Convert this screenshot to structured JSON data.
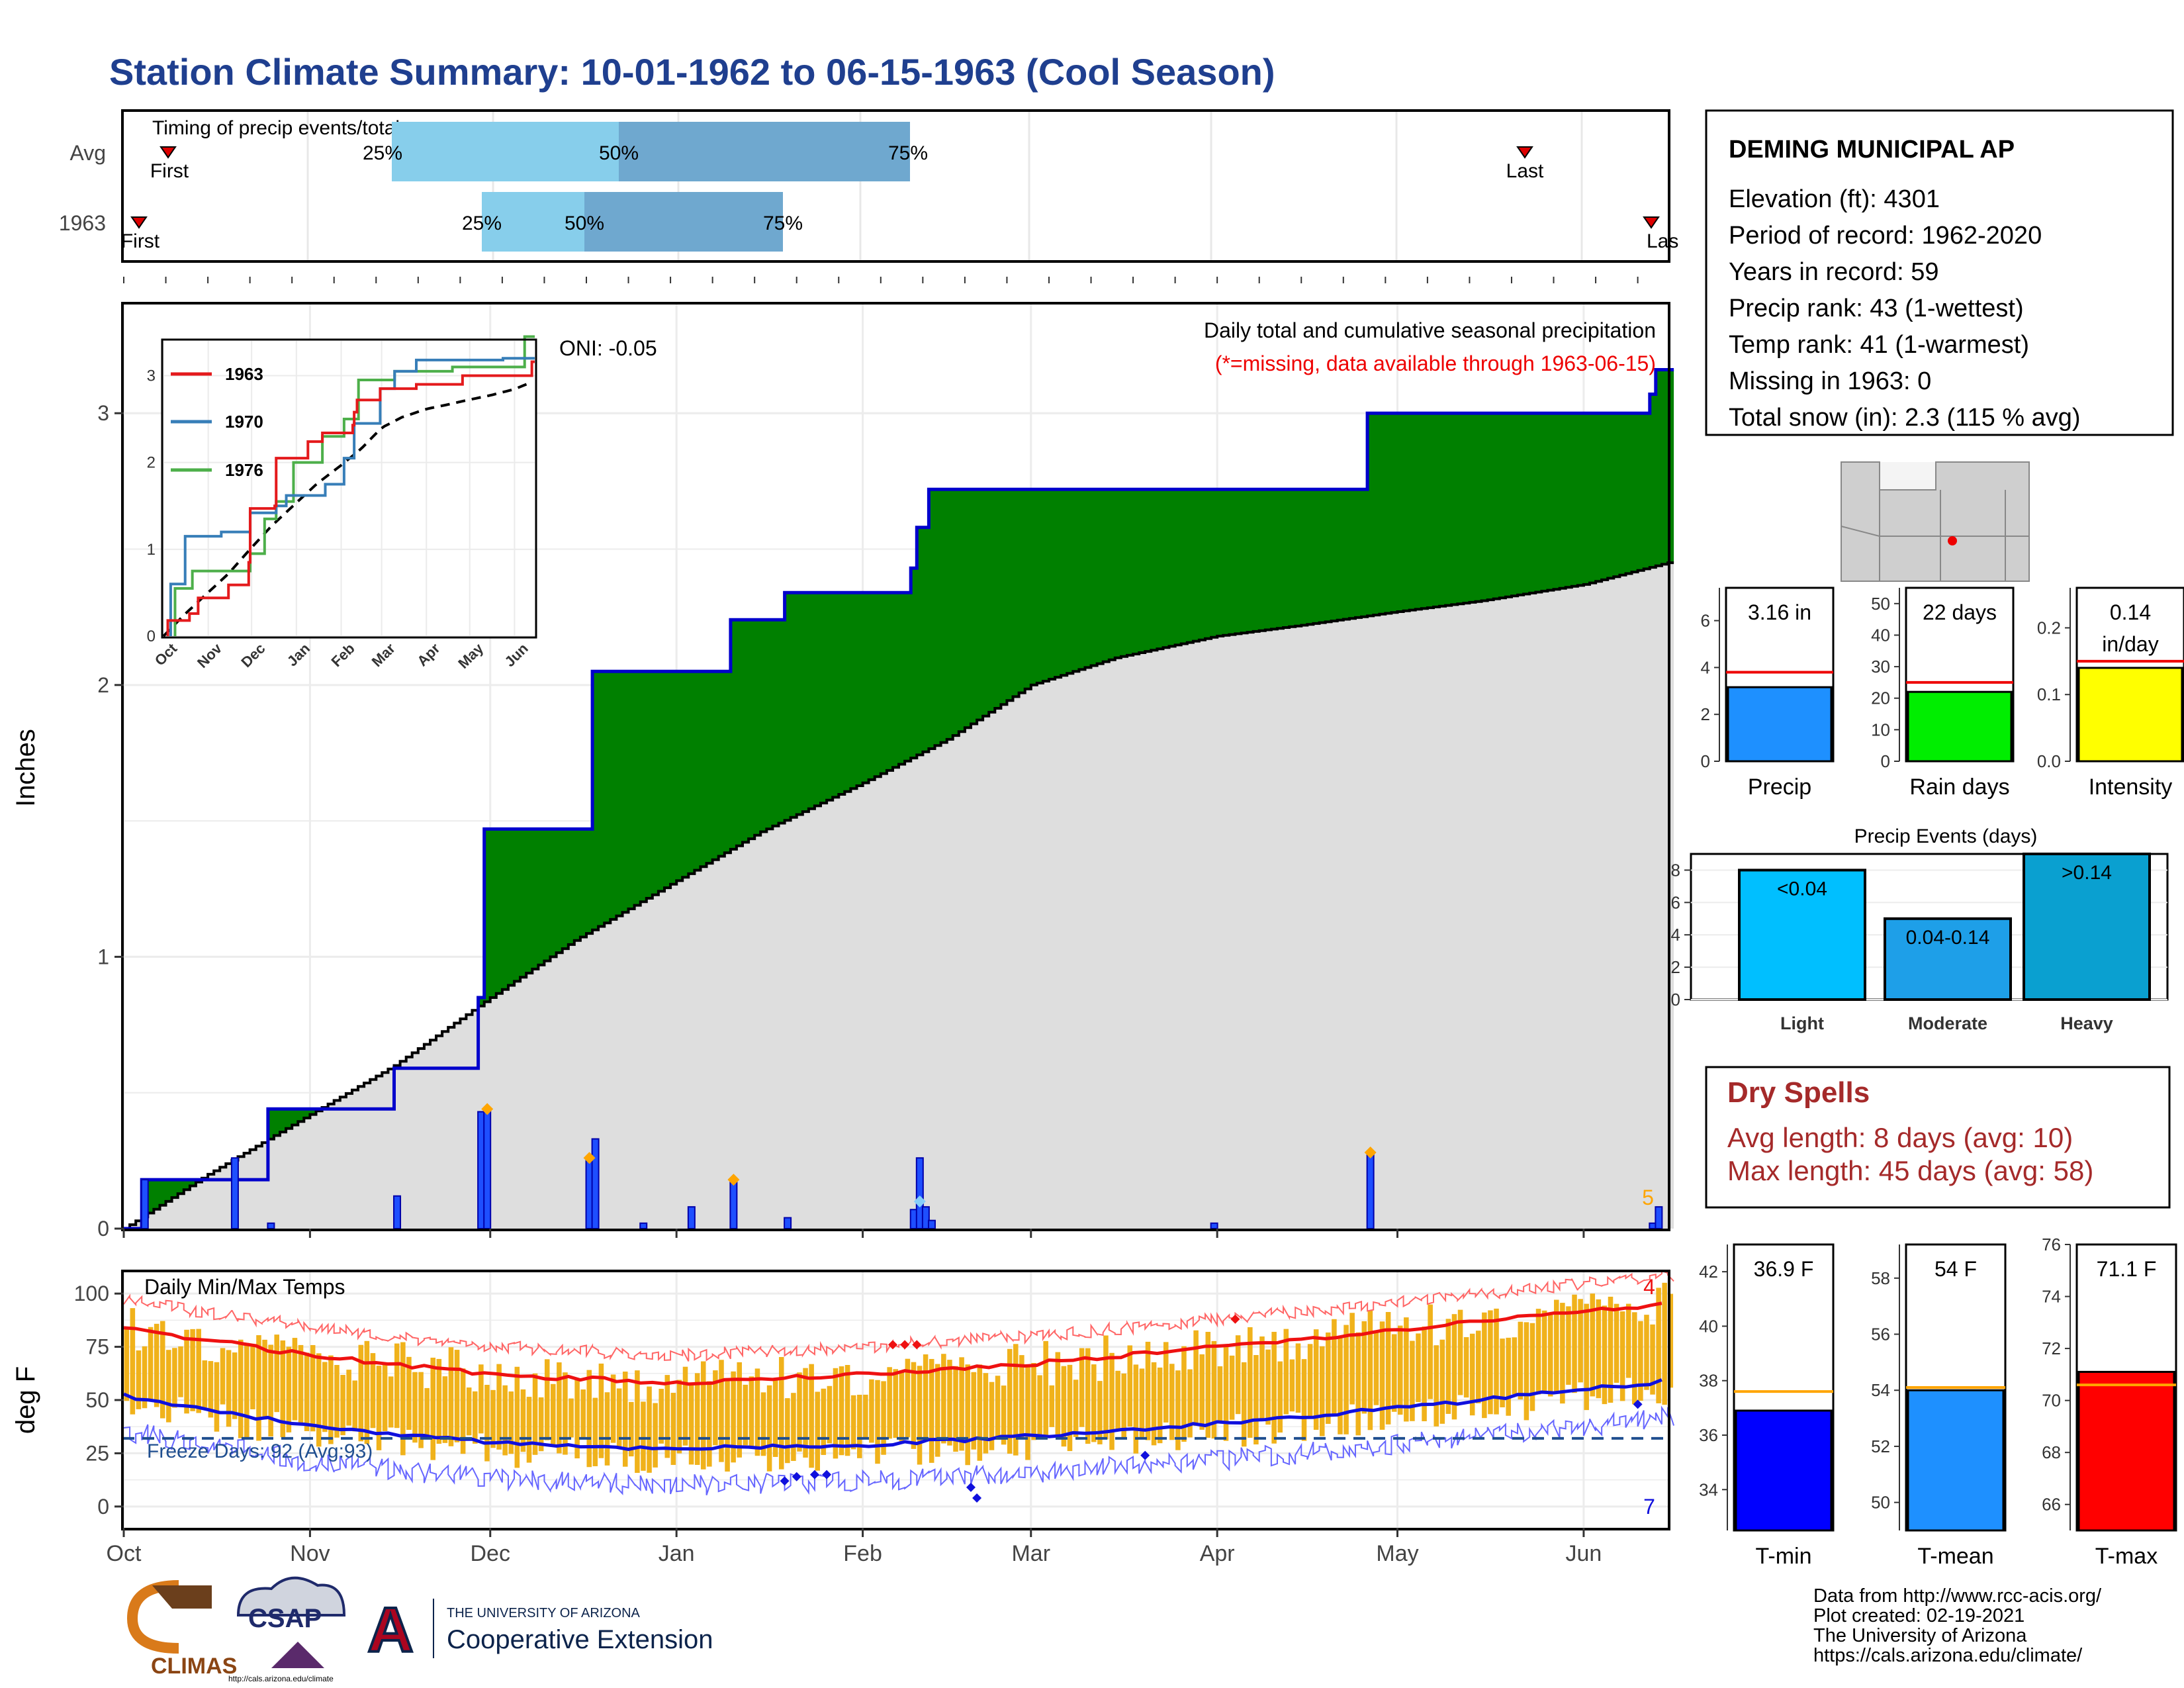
{
  "title": "Station Climate Summary: 10-01-1962 to 06-15-1963 (Cool Season)",
  "colors": {
    "title": "#1f3f8f",
    "precip_fill": "#008000",
    "precip_line": "#0000cc",
    "deficit_fill": "#7b5200",
    "normal_fill": "#dedede",
    "daily_bar": "#1e4fff",
    "marker": "#ffa500",
    "temp_bar": "#f0b21b",
    "tmax_line": "#ee1111",
    "tmin_line": "#1010dd",
    "dry_spell": "#a52a2a"
  },
  "timing": {
    "label": "Timing of precip events/totals",
    "rows": [
      {
        "name": "Avg",
        "first_label": "First",
        "last_label": "Last",
        "p25": "25%",
        "p50": "50%",
        "p75": "75%"
      },
      {
        "name": "1963",
        "first_label": "First",
        "last_label": "Las",
        "p25": "25%",
        "p50": "50%",
        "p75": "75%"
      }
    ]
  },
  "station": {
    "name": "DEMING MUNICIPAL AP",
    "lines": [
      "Elevation (ft): 4301",
      "Period of record: 1962-2020",
      "Years in record: 59",
      "Precip rank: 43 (1-wettest)",
      "Temp rank: 41 (1-warmest)",
      "Missing in 1963: 0",
      "Total snow (in): 2.3 (115 % avg)"
    ]
  },
  "main_chart": {
    "ylabel": "Inches",
    "title": "Daily total and cumulative seasonal precipitation",
    "subtitle": "(*=missing, data available through 1963-06-15)",
    "oni": "ONI: -0.05",
    "corner_count": "5",
    "y_ticks": [
      "0",
      "1",
      "2",
      "3"
    ]
  },
  "inset": {
    "legend": [
      "1963",
      "1970",
      "1976"
    ],
    "y_ticks": [
      "0",
      "1",
      "2",
      "3"
    ],
    "x_ticks": [
      "Oct",
      "Nov",
      "Dec",
      "Jan",
      "Feb",
      "Mar",
      "Apr",
      "May",
      "Jun"
    ]
  },
  "months": [
    "Oct",
    "Nov",
    "Dec",
    "Jan",
    "Feb",
    "Mar",
    "Apr",
    "May",
    "Jun"
  ],
  "temp_chart": {
    "ylabel": "deg F",
    "title": "Daily Min/Max Temps",
    "freeze": "Freeze Days: 92 (Avg:93)",
    "corner_hot": "4",
    "corner_cold": "7",
    "y_ticks": [
      "0",
      "25",
      "50",
      "75",
      "100"
    ]
  },
  "bars_precip": [
    {
      "label": "Precip",
      "value_text": "3.16 in",
      "ticks": [
        "0",
        "2",
        "4",
        "6"
      ]
    },
    {
      "label": "Rain days",
      "value_text": "22 days",
      "ticks": [
        "0",
        "10",
        "20",
        "30",
        "40",
        "50"
      ]
    },
    {
      "label": "Intensity",
      "value_text": "0.14 in/day",
      "value_line1": "0.14",
      "value_line2": "in/day",
      "ticks": [
        "0.0",
        "0.1",
        "0.2"
      ]
    }
  ],
  "events": {
    "title": "Precip Events (days)",
    "ticks": [
      "0",
      "2",
      "4",
      "6",
      "8"
    ],
    "bars": [
      {
        "label": "Light",
        "range": "<0.04"
      },
      {
        "label": "Moderate",
        "range": "0.04-0.14"
      },
      {
        "label": "Heavy",
        "range": ">0.14"
      }
    ]
  },
  "dry_spells": {
    "title": "Dry Spells",
    "avg": "Avg length: 8 days (avg: 10)",
    "max": "Max length: 45 days (avg: 58)"
  },
  "bars_temp": [
    {
      "label": "T-min",
      "value_text": "36.9 F",
      "ticks": [
        "34",
        "36",
        "38",
        "40",
        "42"
      ]
    },
    {
      "label": "T-mean",
      "value_text": "54 F",
      "ticks": [
        "50",
        "52",
        "54",
        "56",
        "58"
      ]
    },
    {
      "label": "T-max",
      "value_text": "71.1 F",
      "ticks": [
        "66",
        "68",
        "70",
        "72",
        "74",
        "76"
      ]
    }
  ],
  "footer": [
    "Data from http://www.rcc-acis.org/",
    "Plot created: 02-19-2021",
    "The University of Arizona",
    "https://cals.arizona.edu/climate/"
  ],
  "logos": {
    "climas": "CLIMAS",
    "csap": "CSAP",
    "csap_url": "http://cals.arizona.edu/climate",
    "ua_small": "THE UNIVERSITY OF ARIZONA",
    "ua_big": "Cooperative Extension",
    "ua_letter": "A"
  },
  "chart_data": [
    {
      "type": "line",
      "title": "Daily total and cumulative seasonal precipitation",
      "ylabel": "Inches",
      "ylim": [
        0,
        3.4
      ],
      "xlim": [
        "1962-10-01",
        "1963-06-15"
      ],
      "series": [
        {
          "name": "cumulative_observed",
          "x": [
            "1962-10-01",
            "1962-10-04",
            "1962-10-19",
            "1962-10-25",
            "1962-11-15",
            "1962-11-29",
            "1962-11-30",
            "1962-12-17",
            "1962-12-18",
            "1963-01-10",
            "1963-01-19",
            "1963-02-09",
            "1963-02-10",
            "1963-02-12",
            "1963-04-26",
            "1963-06-12",
            "1963-06-13",
            "1963-06-15"
          ],
          "y": [
            0.0,
            0.18,
            0.18,
            0.44,
            0.59,
            0.85,
            1.47,
            1.47,
            2.05,
            2.24,
            2.34,
            2.43,
            2.58,
            2.72,
            3.0,
            3.07,
            3.16,
            3.16
          ]
        },
        {
          "name": "cumulative_normal",
          "x": [
            "1962-10-01",
            "1962-10-15",
            "1962-11-01",
            "1962-11-15",
            "1962-12-01",
            "1962-12-15",
            "1963-01-01",
            "1963-01-15",
            "1963-02-01",
            "1963-02-15",
            "1963-03-01",
            "1963-03-15",
            "1963-04-01",
            "1963-04-15",
            "1963-05-01",
            "1963-05-15",
            "1963-06-01",
            "1963-06-15"
          ],
          "y": [
            0.0,
            0.2,
            0.42,
            0.6,
            0.85,
            1.06,
            1.28,
            1.46,
            1.64,
            1.8,
            2.0,
            2.1,
            2.18,
            2.22,
            2.27,
            2.31,
            2.37,
            2.45
          ]
        }
      ],
      "daily_precip": {
        "x": [
          "1962-10-04",
          "1962-10-19",
          "1962-10-25",
          "1962-11-15",
          "1962-11-29",
          "1962-11-30",
          "1962-12-17",
          "1962-12-18",
          "1962-12-26",
          "1963-01-03",
          "1963-01-10",
          "1963-01-19",
          "1963-02-09",
          "1963-02-10",
          "1963-02-11",
          "1963-02-12",
          "1963-03-31",
          "1963-04-26",
          "1963-06-12",
          "1963-06-13"
        ],
        "y": [
          0.18,
          0.26,
          0.02,
          0.12,
          0.43,
          0.44,
          0.26,
          0.33,
          0.02,
          0.08,
          0.18,
          0.04,
          0.07,
          0.26,
          0.08,
          0.03,
          0.02,
          0.28,
          0.02,
          0.08
        ]
      }
    },
    {
      "type": "line",
      "title": "Daily Min/Max Temps",
      "ylabel": "deg F",
      "ylim": [
        -10,
        110
      ],
      "series": [
        {
          "name": "normal_max",
          "x": [
            "1962-10-01",
            "1962-11-01",
            "1962-12-01",
            "1963-01-01",
            "1963-02-01",
            "1963-03-01",
            "1963-04-01",
            "1963-05-01",
            "1963-06-01",
            "1963-06-15"
          ],
          "y": [
            84,
            71,
            62,
            58,
            62,
            67,
            75,
            83,
            92,
            95
          ]
        },
        {
          "name": "normal_min",
          "x": [
            "1962-10-01",
            "1962-11-01",
            "1962-12-01",
            "1963-01-01",
            "1963-02-01",
            "1963-03-01",
            "1963-04-01",
            "1963-05-01",
            "1963-06-01",
            "1963-06-15"
          ],
          "y": [
            52,
            38,
            30,
            27,
            29,
            33,
            39,
            46,
            55,
            59
          ]
        }
      ],
      "freeze_line": 32
    },
    {
      "type": "bar",
      "categories": [
        "Precip",
        "Rain days",
        "Intensity"
      ],
      "values": [
        3.16,
        22,
        0.14
      ],
      "averages": [
        3.8,
        25,
        0.15
      ]
    },
    {
      "type": "bar",
      "title": "Precip Events (days)",
      "categories": [
        "Light",
        "Moderate",
        "Heavy"
      ],
      "values": [
        8,
        5,
        9
      ],
      "ylim": [
        0,
        9
      ]
    },
    {
      "type": "bar",
      "categories": [
        "T-min",
        "T-mean",
        "T-max"
      ],
      "values": [
        36.9,
        54,
        71.1
      ],
      "averages": [
        37.6,
        54.1,
        70.6
      ]
    }
  ]
}
